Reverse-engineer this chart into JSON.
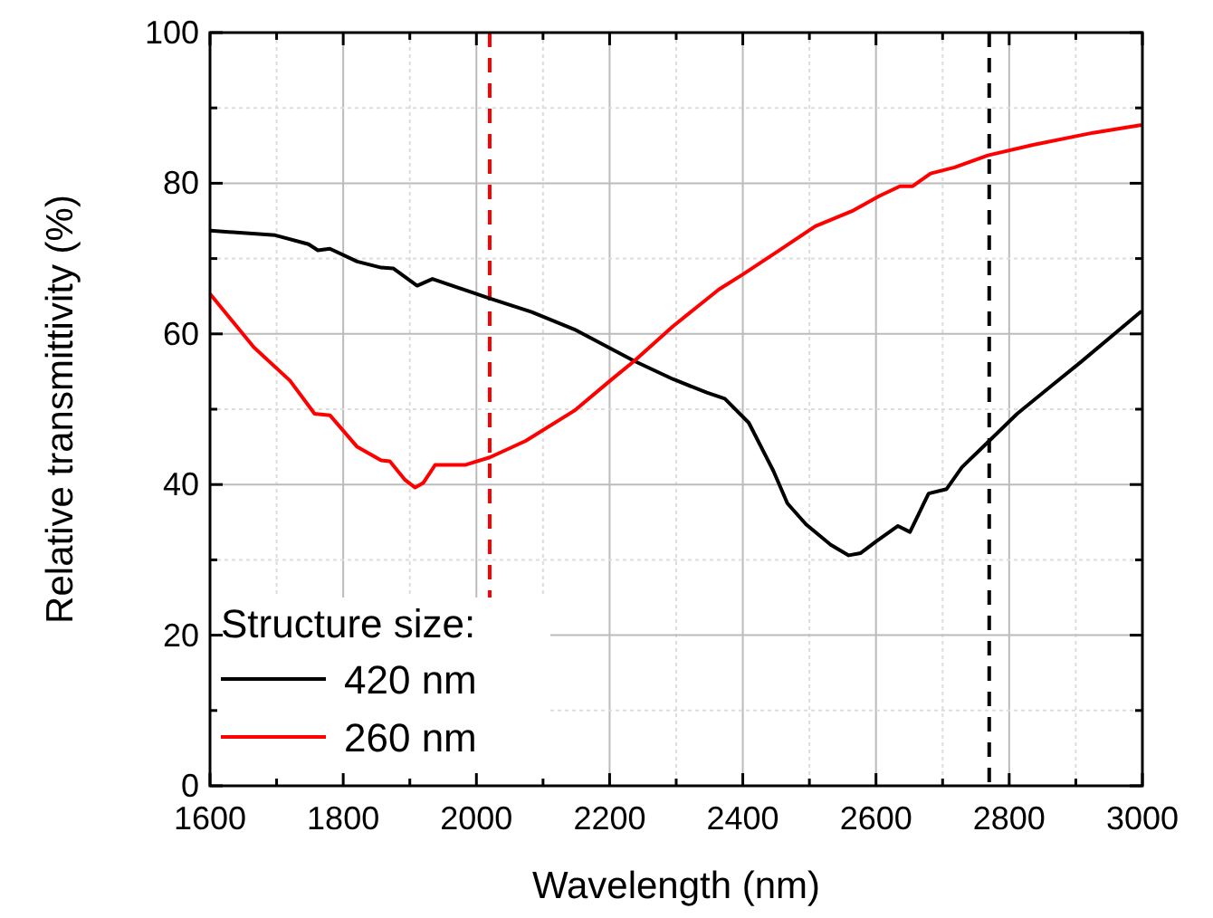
{
  "chart_data": {
    "type": "line",
    "xlabel": "Wavelength (nm)",
    "ylabel": "Relative transmittivity (%)",
    "legend_title": "Structure size:",
    "legend": "bottom left",
    "grid": true,
    "line_style": "solid",
    "marker": "none",
    "xlim": [
      1600,
      3000
    ],
    "ylim": [
      0,
      100
    ],
    "xticks": [
      1600,
      {
        "value": 1700,
        "label": null
      },
      1800,
      {
        "value": 1900,
        "label": null
      },
      2000,
      {
        "value": 2100,
        "label": null
      },
      2200,
      {
        "value": 2300,
        "label": null
      },
      2400,
      {
        "value": 2500,
        "label": null
      },
      2600,
      {
        "value": 2700,
        "label": null
      },
      2800,
      {
        "value": 2900,
        "label": null
      },
      3000
    ],
    "yticks": [
      0,
      {
        "value": 10,
        "label": null
      },
      20,
      {
        "value": 30,
        "label": null
      },
      40,
      {
        "value": 50,
        "label": null
      },
      60,
      {
        "value": 70,
        "label": null
      },
      80,
      {
        "value": 90,
        "label": null
      },
      100
    ],
    "series": [
      {
        "name": "420 nm",
        "color": "#000000",
        "x": [
          1601,
          1698,
          1748,
          1762,
          1780,
          1821,
          1857,
          1875,
          1911,
          1934,
          2020,
          2083,
          2147,
          2237,
          2295,
          2346,
          2373,
          2409,
          2446,
          2467,
          2495,
          2532,
          2559,
          2577,
          2601,
          2633,
          2651,
          2679,
          2706,
          2729,
          2770,
          2812,
          2862,
          2908,
          2997
        ],
        "values": [
          73.7,
          73.1,
          71.9,
          71.1,
          71.3,
          69.6,
          68.8,
          68.7,
          66.4,
          67.3,
          64.7,
          62.9,
          60.6,
          56.4,
          54.0,
          52.2,
          51.4,
          48.2,
          41.8,
          37.5,
          34.7,
          32.0,
          30.6,
          30.9,
          32.5,
          34.5,
          33.7,
          38.8,
          39.4,
          42.3,
          45.8,
          49.4,
          53.0,
          56.3,
          62.9
        ]
      },
      {
        "name": "260 nm",
        "color": "#ff0000",
        "x": [
          1601,
          1666,
          1720,
          1757,
          1780,
          1821,
          1857,
          1870,
          1893,
          1908,
          1920,
          1938,
          1983,
          2020,
          2074,
          2147,
          2201,
          2237,
          2295,
          2364,
          2400,
          2455,
          2509,
          2564,
          2605,
          2636,
          2655,
          2682,
          2718,
          2768,
          2836,
          2926,
          2997
        ],
        "values": [
          65.2,
          58.2,
          53.8,
          49.4,
          49.2,
          45.0,
          43.2,
          43.1,
          40.6,
          39.6,
          40.2,
          42.6,
          42.6,
          43.6,
          45.8,
          49.8,
          53.8,
          56.4,
          61.0,
          65.9,
          67.9,
          71.1,
          74.3,
          76.3,
          78.3,
          79.6,
          79.6,
          81.3,
          82.1,
          83.7,
          85.1,
          86.7,
          87.7
        ]
      }
    ],
    "ref_lines": [
      {
        "axis": "x",
        "value": 2020,
        "color": "#ff0000",
        "line_style": "dashed"
      },
      {
        "axis": "x",
        "value": 2770,
        "color": "#000000",
        "line_style": "dashed"
      }
    ]
  }
}
